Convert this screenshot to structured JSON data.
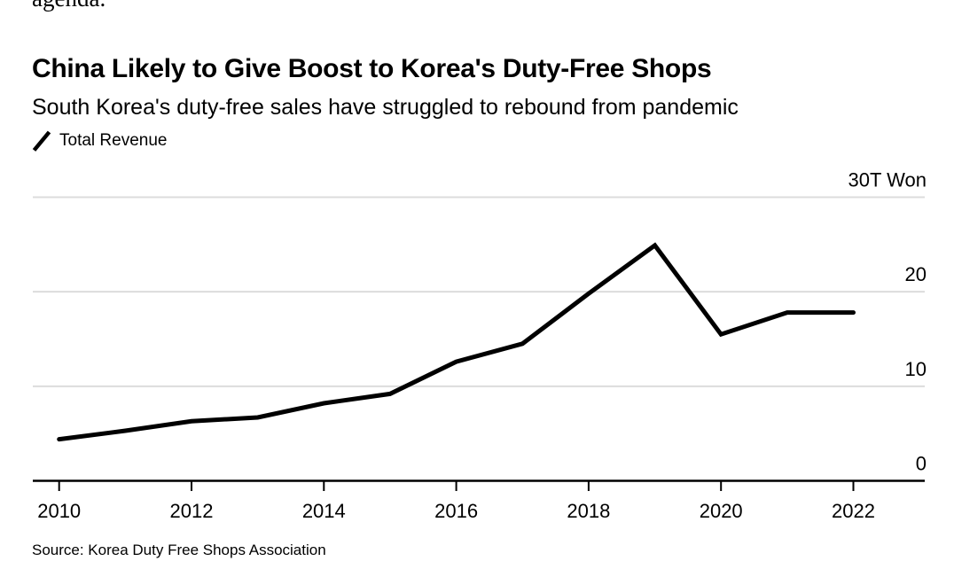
{
  "article_fragment": "agenda.",
  "chart": {
    "title": "China Likely to Give Boost to Korea's Duty-Free Shops",
    "subtitle": "South Korea's duty-free sales have struggled to rebound from pandemic",
    "legend_label": "Total Revenue",
    "source": "Source: Korea Duty Free Shops Association"
  },
  "chart_data": {
    "type": "line",
    "title": "China Likely to Give Boost to Korea's Duty-Free Shops",
    "subtitle": "South Korea's duty-free sales have struggled to rebound from pandemic",
    "x": [
      2010,
      2011,
      2012,
      2013,
      2014,
      2015,
      2016,
      2017,
      2018,
      2019,
      2020,
      2021,
      2022
    ],
    "series": [
      {
        "name": "Total Revenue",
        "color": "#000000",
        "values": [
          4.4,
          5.3,
          6.3,
          6.7,
          8.2,
          9.2,
          12.6,
          14.5,
          19.8,
          24.9,
          15.5,
          17.8,
          17.8
        ]
      }
    ],
    "unit": "T Won",
    "ylim": [
      0,
      30
    ],
    "y_ticks": [
      {
        "value": 30,
        "label": "30T Won"
      },
      {
        "value": 20,
        "label": "20"
      },
      {
        "value": 10,
        "label": "10"
      },
      {
        "value": 0,
        "label": "0"
      }
    ],
    "x_ticks": [
      2010,
      2012,
      2014,
      2016,
      2018,
      2020,
      2022
    ],
    "grid": "horizontal-only",
    "legend_position": "top-left",
    "y_axis_side": "right",
    "colors": {
      "line": "#000000",
      "grid": "#dcdcdc",
      "axis": "#000000",
      "text": "#000000",
      "background": "#ffffff"
    },
    "source": "Source: Korea Duty Free Shops Association"
  }
}
